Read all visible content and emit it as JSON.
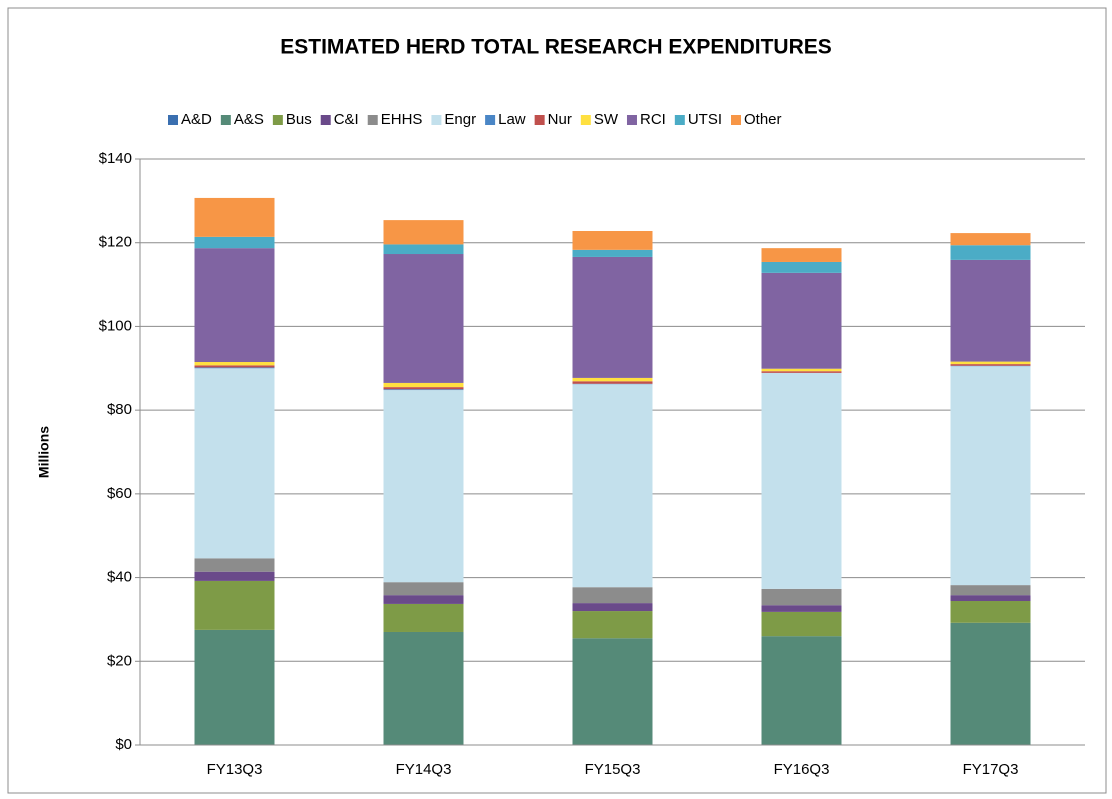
{
  "chart_data": {
    "type": "stacked_bar",
    "title": "ESTIMATED HERD TOTAL RESEARCH EXPENDITURES",
    "y_label": "Millions",
    "categories": [
      "FY13Q3",
      "FY14Q3",
      "FY15Q3",
      "FY16Q3",
      "FY17Q3"
    ],
    "series": [
      {
        "name": "A&D",
        "color": "#3a6fb0",
        "values": [
          0,
          0,
          0,
          0,
          0
        ]
      },
      {
        "name": "A&S",
        "color": "#558a78",
        "values": [
          27.5,
          27,
          25.5,
          26,
          29.2
        ]
      },
      {
        "name": "Bus",
        "color": "#7e9b47",
        "values": [
          11.7,
          6.7,
          6.5,
          5.8,
          5.2
        ]
      },
      {
        "name": "C&I",
        "color": "#6a4a8a",
        "values": [
          2.2,
          2.1,
          1.9,
          1.6,
          1.4
        ]
      },
      {
        "name": "EHHS",
        "color": "#8c8c8c",
        "values": [
          3.2,
          3.1,
          3.8,
          3.9,
          2.4
        ]
      },
      {
        "name": "Engr",
        "color": "#c3e0ec",
        "values": [
          45.4,
          45.9,
          48.5,
          51.6,
          52.3
        ]
      },
      {
        "name": "Law",
        "color": "#4a86c6",
        "values": [
          0.2,
          0.2,
          0.1,
          0,
          0.1
        ]
      },
      {
        "name": "Nur",
        "color": "#c0504d",
        "values": [
          0.5,
          0.5,
          0.6,
          0.4,
          0.4
        ]
      },
      {
        "name": "SW",
        "color": "#ffe040",
        "values": [
          0.8,
          1.0,
          0.8,
          0.6,
          0.6
        ]
      },
      {
        "name": "RCI",
        "color": "#8064a2",
        "values": [
          27.2,
          30.8,
          28.9,
          22.9,
          24.3
        ]
      },
      {
        "name": "UTSI",
        "color": "#4bacc6",
        "values": [
          2.7,
          2.3,
          1.7,
          2.6,
          3.5
        ]
      },
      {
        "name": "Other",
        "color": "#f79646",
        "values": [
          9.3,
          5.8,
          4.5,
          3.3,
          2.9
        ]
      }
    ],
    "ylim": [
      0,
      140
    ],
    "yticks": [
      {
        "value": 0,
        "label": "$0"
      },
      {
        "value": 20,
        "label": "$20"
      },
      {
        "value": 40,
        "label": "$40"
      },
      {
        "value": 60,
        "label": "$60"
      },
      {
        "value": 80,
        "label": "$80"
      },
      {
        "value": 100,
        "label": "$100"
      },
      {
        "value": 120,
        "label": "$120"
      },
      {
        "value": 140,
        "label": "$140"
      }
    ],
    "grid": true,
    "legend": "top"
  }
}
